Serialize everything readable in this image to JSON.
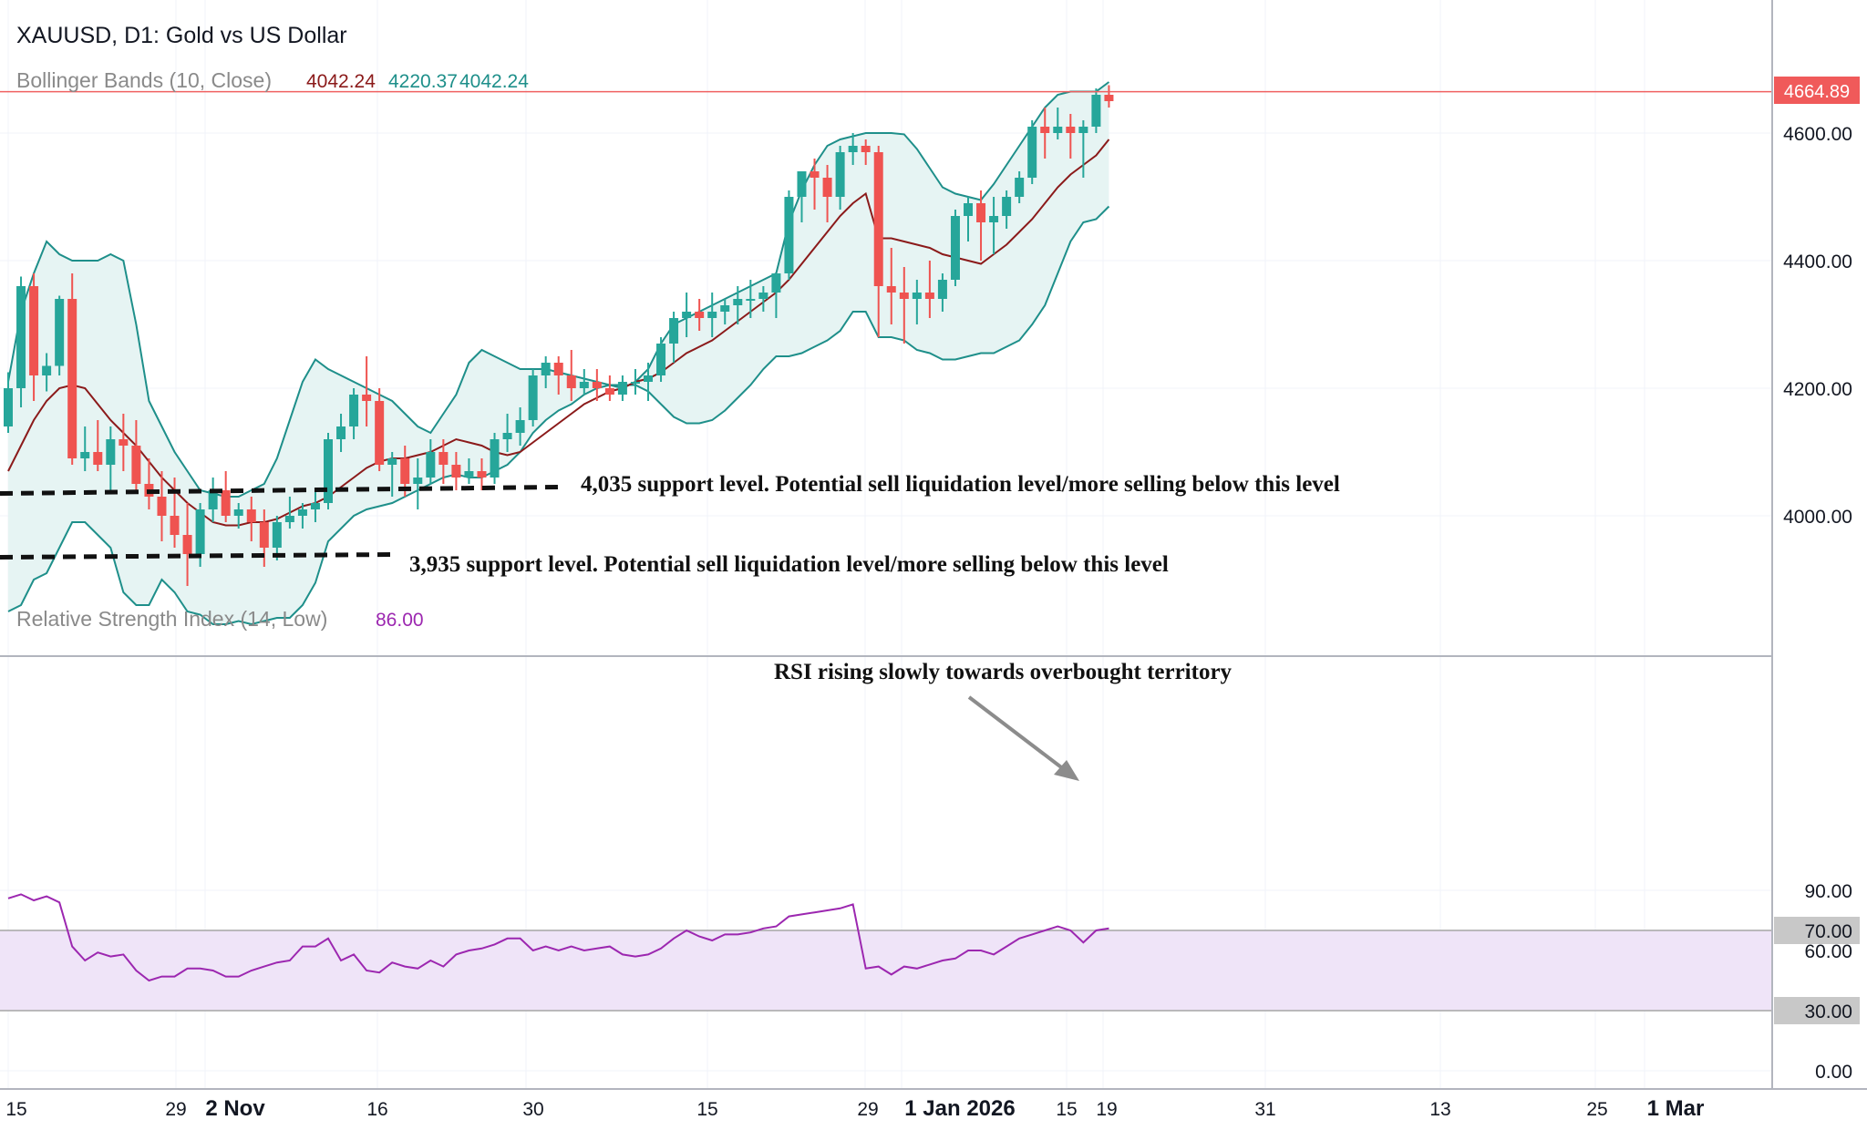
{
  "header": {
    "symbol_title": "XAUUSD, D1: Gold vs US Dollar",
    "bb_label": "Bollinger Bands (10, Close)",
    "bb_value_1": "4042.24",
    "bb_value_2": "4220.37",
    "bb_value_3": "4042.24",
    "rsi_label": "Relative Strength Index (14, Low)",
    "rsi_value": "86.00"
  },
  "colors": {
    "up": "#26a69a",
    "down": "#ef5350",
    "band_line": "#1e8f8a",
    "band_fill": "#e6f4f3",
    "basis": "#8b1a1a",
    "price_line": "#f06060",
    "rsi_line": "#9c27b0",
    "rsi_fill": "#efe4f8",
    "axis_text": "#131722",
    "label_grey": "#8a8a8a"
  },
  "annotations": {
    "support_4035": "4,035 support level. Potential sell liquidation level/more selling below this level",
    "support_3935": "3,935 support level. Potential sell liquidation level/more selling below this level",
    "rsi_note": "RSI rising slowly towards overbought territory"
  },
  "chart_data": [
    {
      "type": "candlestick",
      "title": "XAUUSD, D1: Gold vs US Dollar",
      "current_price": "4664.89",
      "y_ticks": [
        "4000.00",
        "4200.00",
        "4400.00",
        "4600.00"
      ],
      "x_ticks": [
        "15",
        "29",
        "2 Nov",
        "16",
        "30",
        "15",
        "29",
        "1 Jan 2026",
        "15",
        "19",
        "31",
        "13",
        "25",
        "1 Mar"
      ],
      "support_levels": [
        4035,
        3935
      ],
      "ohlc": [
        [
          4140,
          4225,
          4130,
          4200
        ],
        [
          4200,
          4375,
          4170,
          4360
        ],
        [
          4360,
          4380,
          4180,
          4220
        ],
        [
          4220,
          4255,
          4195,
          4235
        ],
        [
          4235,
          4345,
          4220,
          4340
        ],
        [
          4340,
          4380,
          4080,
          4090
        ],
        [
          4090,
          4140,
          4070,
          4100
        ],
        [
          4100,
          4150,
          4070,
          4080
        ],
        [
          4080,
          4140,
          4040,
          4120
        ],
        [
          4120,
          4160,
          4070,
          4110
        ],
        [
          4110,
          4150,
          4040,
          4050
        ],
        [
          4050,
          4090,
          4010,
          4030
        ],
        [
          4030,
          4070,
          3960,
          4000
        ],
        [
          4000,
          4060,
          3950,
          3970
        ],
        [
          3970,
          4020,
          3890,
          3940
        ],
        [
          3940,
          4020,
          3920,
          4010
        ],
        [
          4010,
          4060,
          3990,
          4040
        ],
        [
          4040,
          4070,
          3990,
          4000
        ],
        [
          4000,
          4020,
          3980,
          4010
        ],
        [
          4010,
          4030,
          3960,
          3990
        ],
        [
          3990,
          4010,
          3920,
          3950
        ],
        [
          3950,
          4000,
          3930,
          3990
        ],
        [
          3990,
          4030,
          3980,
          4000
        ],
        [
          4000,
          4020,
          3980,
          4010
        ],
        [
          4010,
          4040,
          3990,
          4020
        ],
        [
          4020,
          4130,
          4010,
          4120
        ],
        [
          4120,
          4160,
          4100,
          4140
        ],
        [
          4140,
          4200,
          4120,
          4190
        ],
        [
          4190,
          4250,
          4140,
          4180
        ],
        [
          4180,
          4200,
          4070,
          4080
        ],
        [
          4080,
          4100,
          4030,
          4090
        ],
        [
          4090,
          4110,
          4030,
          4050
        ],
        [
          4050,
          4090,
          4010,
          4060
        ],
        [
          4060,
          4120,
          4050,
          4100
        ],
        [
          4100,
          4120,
          4050,
          4080
        ],
        [
          4080,
          4100,
          4040,
          4060
        ],
        [
          4060,
          4090,
          4050,
          4070
        ],
        [
          4070,
          4090,
          4040,
          4060
        ],
        [
          4060,
          4130,
          4050,
          4120
        ],
        [
          4120,
          4160,
          4100,
          4130
        ],
        [
          4130,
          4170,
          4110,
          4150
        ],
        [
          4150,
          4230,
          4140,
          4220
        ],
        [
          4220,
          4250,
          4200,
          4240
        ],
        [
          4240,
          4250,
          4190,
          4220
        ],
        [
          4220,
          4260,
          4180,
          4200
        ],
        [
          4200,
          4230,
          4190,
          4210
        ],
        [
          4210,
          4230,
          4180,
          4200
        ],
        [
          4200,
          4220,
          4180,
          4190
        ],
        [
          4190,
          4220,
          4180,
          4210
        ],
        [
          4210,
          4230,
          4190,
          4210
        ],
        [
          4210,
          4240,
          4180,
          4220
        ],
        [
          4220,
          4280,
          4210,
          4270
        ],
        [
          4270,
          4320,
          4240,
          4310
        ],
        [
          4310,
          4350,
          4280,
          4320
        ],
        [
          4320,
          4340,
          4290,
          4310
        ],
        [
          4310,
          4350,
          4280,
          4320
        ],
        [
          4320,
          4340,
          4300,
          4330
        ],
        [
          4330,
          4360,
          4300,
          4340
        ],
        [
          4340,
          4370,
          4310,
          4340
        ],
        [
          4340,
          4360,
          4320,
          4350
        ],
        [
          4350,
          4380,
          4310,
          4380
        ],
        [
          4380,
          4510,
          4370,
          4500
        ],
        [
          4500,
          4540,
          4460,
          4540
        ],
        [
          4540,
          4560,
          4480,
          4530
        ],
        [
          4530,
          4550,
          4460,
          4500
        ],
        [
          4500,
          4580,
          4480,
          4570
        ],
        [
          4570,
          4600,
          4550,
          4580
        ],
        [
          4580,
          4590,
          4550,
          4570
        ],
        [
          4570,
          4580,
          4280,
          4360
        ],
        [
          4360,
          4420,
          4300,
          4350
        ],
        [
          4350,
          4390,
          4270,
          4340
        ],
        [
          4340,
          4370,
          4300,
          4350
        ],
        [
          4350,
          4400,
          4310,
          4340
        ],
        [
          4340,
          4380,
          4320,
          4370
        ],
        [
          4370,
          4480,
          4360,
          4470
        ],
        [
          4470,
          4500,
          4430,
          4490
        ],
        [
          4490,
          4510,
          4400,
          4460
        ],
        [
          4460,
          4500,
          4410,
          4470
        ],
        [
          4470,
          4510,
          4450,
          4500
        ],
        [
          4500,
          4540,
          4490,
          4530
        ],
        [
          4530,
          4620,
          4520,
          4610
        ],
        [
          4610,
          4640,
          4560,
          4600
        ],
        [
          4600,
          4640,
          4590,
          4610
        ],
        [
          4610,
          4630,
          4560,
          4600
        ],
        [
          4600,
          4620,
          4530,
          4610
        ],
        [
          4610,
          4670,
          4600,
          4660
        ],
        [
          4660,
          4675,
          4640,
          4650
        ]
      ],
      "bb_basis": [
        4070,
        4110,
        4150,
        4180,
        4200,
        4205,
        4200,
        4175,
        4150,
        4130,
        4110,
        4085,
        4060,
        4040,
        4020,
        4005,
        3990,
        3985,
        3985,
        3990,
        3990,
        3995,
        4005,
        4015,
        4020,
        4030,
        4045,
        4060,
        4075,
        4085,
        4090,
        4090,
        4095,
        4100,
        4110,
        4120,
        4115,
        4110,
        4100,
        4095,
        4100,
        4115,
        4130,
        4145,
        4160,
        4175,
        4185,
        4195,
        4200,
        4210,
        4215,
        4225,
        4240,
        4255,
        4265,
        4275,
        4290,
        4305,
        4320,
        4335,
        4350,
        4370,
        4395,
        4420,
        4445,
        4470,
        4490,
        4505,
        4435,
        4435,
        4430,
        4425,
        4420,
        4410,
        4405,
        4400,
        4395,
        4410,
        4425,
        4445,
        4465,
        4490,
        4515,
        4535,
        4550,
        4565,
        4590
      ],
      "bb_upper": [
        4210,
        4320,
        4380,
        4430,
        4410,
        4400,
        4400,
        4400,
        4410,
        4400,
        4300,
        4180,
        4140,
        4100,
        4070,
        4040,
        4035,
        4030,
        4030,
        4040,
        4050,
        4090,
        4150,
        4210,
        4245,
        4230,
        4220,
        4210,
        4200,
        4190,
        4180,
        4160,
        4140,
        4130,
        4160,
        4190,
        4240,
        4260,
        4250,
        4240,
        4230,
        4230,
        4230,
        4225,
        4220,
        4215,
        4210,
        4205,
        4200,
        4210,
        4230,
        4270,
        4300,
        4310,
        4320,
        4330,
        4340,
        4350,
        4360,
        4370,
        4380,
        4460,
        4510,
        4550,
        4580,
        4590,
        4595,
        4600,
        4600,
        4600,
        4598,
        4575,
        4545,
        4515,
        4505,
        4500,
        4495,
        4520,
        4550,
        4580,
        4610,
        4640,
        4660,
        4665,
        4665,
        4665,
        4680
      ],
      "bb_lower": [
        3850,
        3860,
        3900,
        3910,
        3950,
        3990,
        3990,
        3970,
        3950,
        3880,
        3860,
        3860,
        3900,
        3880,
        3850,
        3845,
        3830,
        3830,
        3835,
        3830,
        3835,
        3840,
        3840,
        3860,
        3895,
        3960,
        3980,
        4000,
        4010,
        4015,
        4020,
        4030,
        4040,
        4050,
        4060,
        4065,
        4060,
        4060,
        4070,
        4080,
        4100,
        4130,
        4150,
        4165,
        4175,
        4190,
        4200,
        4205,
        4205,
        4205,
        4195,
        4175,
        4155,
        4145,
        4145,
        4150,
        4165,
        4185,
        4205,
        4230,
        4250,
        4250,
        4255,
        4265,
        4275,
        4290,
        4320,
        4320,
        4280,
        4280,
        4275,
        4260,
        4255,
        4245,
        4245,
        4250,
        4255,
        4255,
        4265,
        4275,
        4300,
        4330,
        4380,
        4430,
        4460,
        4465,
        4485
      ]
    },
    {
      "type": "line",
      "title": "Relative Strength Index (14, Low)",
      "y_ticks": [
        "0.00",
        "30.00",
        "60.00",
        "70.00",
        "90.00"
      ],
      "overbought": 70,
      "oversold": 30,
      "x_ticks": [
        "15",
        "29",
        "2 Nov",
        "16",
        "30",
        "15",
        "29",
        "1 Jan 2026",
        "15",
        "19",
        "31",
        "13",
        "25",
        "1 Mar"
      ],
      "values": [
        86,
        88,
        85,
        87,
        84,
        62,
        55,
        59,
        57,
        58,
        50,
        45,
        47,
        47,
        51,
        51,
        50,
        47,
        47,
        50,
        52,
        54,
        55,
        62,
        62,
        66,
        55,
        58,
        50,
        49,
        54,
        52,
        51,
        55,
        52,
        58,
        60,
        61,
        63,
        66,
        66,
        60,
        62,
        60,
        62,
        60,
        61,
        62,
        58,
        57,
        58,
        61,
        66,
        70,
        67,
        65,
        68,
        68,
        69,
        71,
        72,
        77,
        78,
        79,
        80,
        81,
        83,
        51,
        52,
        48,
        52,
        51,
        53,
        55,
        56,
        60,
        60,
        58,
        62,
        66,
        68,
        70,
        72,
        70,
        64,
        70,
        71
      ]
    }
  ]
}
